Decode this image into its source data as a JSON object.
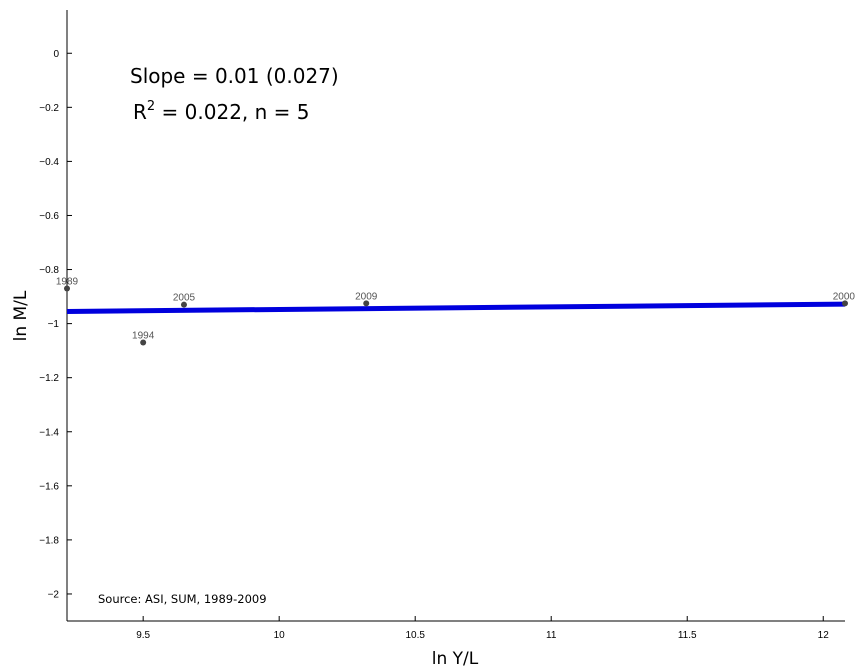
{
  "chart_data": {
    "type": "scatter",
    "xlabel": "ln Y/L",
    "ylabel": "ln M/L",
    "xlim": [
      9.22,
      12.08
    ],
    "ylim": [
      -2.1,
      0.16
    ],
    "x_ticks": [
      "9.5",
      "10",
      "10.5",
      "11",
      "11.5",
      "12"
    ],
    "y_ticks": [
      "0",
      "−0.2",
      "−0.4",
      "−0.6",
      "−0.8",
      "−1",
      "−1.2",
      "−1.4",
      "−1.6",
      "−1.8",
      "−2"
    ],
    "points": [
      {
        "label": "1989",
        "x": 9.22,
        "y": -0.87
      },
      {
        "label": "1994",
        "x": 9.5,
        "y": -1.07
      },
      {
        "label": "2005",
        "x": 9.65,
        "y": -0.93
      },
      {
        "label": "2009",
        "x": 10.32,
        "y": -0.925
      },
      {
        "label": "2000",
        "x": 12.08,
        "y": -0.925
      }
    ],
    "fit_line": {
      "x": [
        9.22,
        12.08
      ],
      "y": [
        -0.955,
        -0.928
      ],
      "color": "#0000dd"
    },
    "annotations": {
      "slope": "Slope = 0.01 (0.027)",
      "r2_prefix": "R",
      "r2_sup": "2",
      "r2_rest": " = 0.022, n = 5",
      "source": "Source: ASI, SUM, 1989-2009"
    },
    "grid": false
  }
}
